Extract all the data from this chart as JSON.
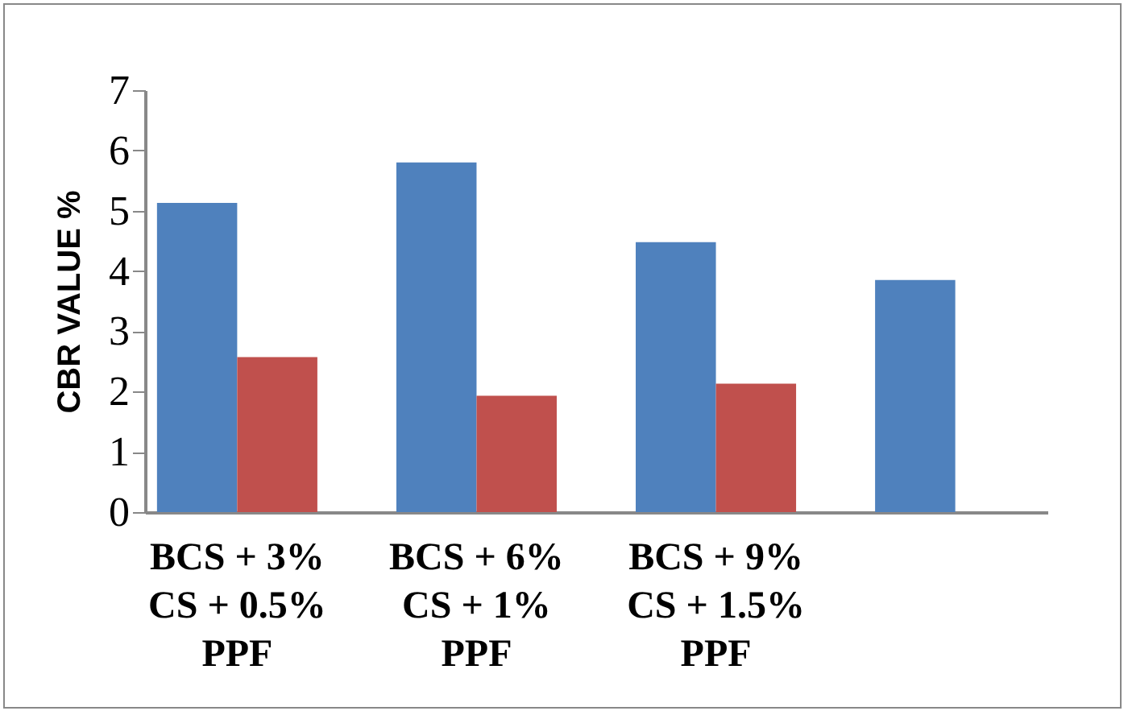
{
  "chart_data": {
    "type": "bar",
    "ylabel": "CBR VALUE %",
    "categories": [
      "BCS + 3%\nCS + 0.5%\nPPF",
      "BCS + 6%\nCS + 1%\nPPF",
      "BCS + 9%\nCS + 1.5%\nPPF",
      null
    ],
    "series": [
      {
        "color": "#4f81bd",
        "values": [
          5.13,
          5.8,
          4.48,
          3.85
        ]
      },
      {
        "color": "#c0504d",
        "values": [
          2.57,
          1.93,
          2.13,
          null
        ]
      }
    ],
    "ylim": [
      0,
      7
    ],
    "yticks": [
      0,
      1,
      2,
      3,
      4,
      5,
      6,
      7
    ],
    "grid": false,
    "legend": false
  }
}
